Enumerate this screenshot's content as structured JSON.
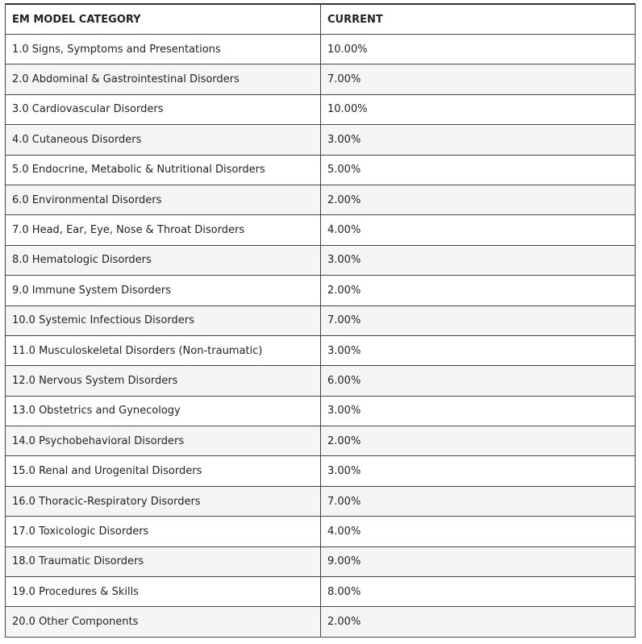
{
  "table": {
    "header": [
      "EM MODEL CATEGORY",
      "CURRENT"
    ],
    "rows": [
      [
        "1.0 Signs, Symptoms and Presentations",
        "10.00%"
      ],
      [
        "2.0 Abdominal & Gastrointestinal Disorders",
        "7.00%"
      ],
      [
        "3.0 Cardiovascular Disorders",
        "10.00%"
      ],
      [
        "4.0 Cutaneous Disorders",
        "3.00%"
      ],
      [
        "5.0 Endocrine, Metabolic & Nutritional Disorders",
        "5.00%"
      ],
      [
        "6.0 Environmental Disorders",
        "2.00%"
      ],
      [
        "7.0 Head, Ear, Eye, Nose & Throat Disorders",
        "4.00%"
      ],
      [
        "8.0 Hematologic Disorders",
        "3.00%"
      ],
      [
        "9.0 Immune System Disorders",
        "2.00%"
      ],
      [
        "10.0 Systemic Infectious Disorders",
        "7.00%"
      ],
      [
        "11.0 Musculoskeletal Disorders (Non-traumatic)",
        "3.00%"
      ],
      [
        "12.0 Nervous System Disorders",
        "6.00%"
      ],
      [
        "13.0 Obstetrics and Gynecology",
        "3.00%"
      ],
      [
        "14.0 Psychobehavioral Disorders",
        "2.00%"
      ],
      [
        "15.0 Renal and Urogenital Disorders",
        "3.00%"
      ],
      [
        "16.0 Thoracic-Respiratory Disorders",
        "7.00%"
      ],
      [
        "17.0 Toxicologic Disorders",
        "4.00%"
      ],
      [
        "18.0 Traumatic Disorders",
        "9.00%"
      ],
      [
        "19.0 Procedures & Skills",
        "8.00%"
      ],
      [
        "20.0 Other Components",
        "2.00%"
      ]
    ]
  }
}
